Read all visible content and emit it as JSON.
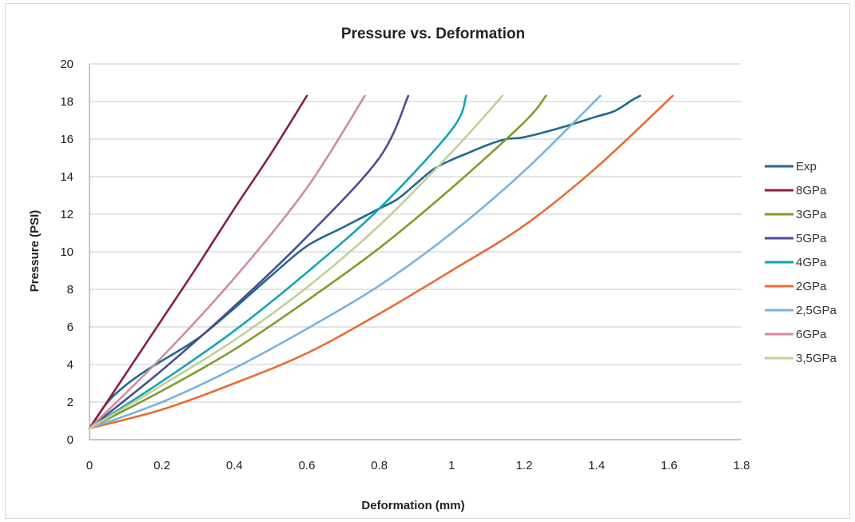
{
  "chart_data": {
    "type": "line",
    "title": "Pressure vs. Deformation",
    "xlabel": "Deformation (mm)",
    "ylabel": "Pressure (PSI)",
    "xlim": [
      0,
      1.8
    ],
    "ylim": [
      0,
      20
    ],
    "xticks": [
      "0",
      "0.2",
      "0.4",
      "0.6",
      "0.8",
      "1",
      "1.2",
      "1.4",
      "1.6",
      "1.8"
    ],
    "yticks": [
      "0",
      "2",
      "4",
      "6",
      "8",
      "10",
      "12",
      "14",
      "16",
      "18",
      "20"
    ],
    "grid": "horizontal",
    "legend_position": "right",
    "series": [
      {
        "name": "Exp",
        "color": "#1f6a8e",
        "x": [
          0.0,
          0.05,
          0.1,
          0.15,
          0.2,
          0.3,
          0.4,
          0.5,
          0.6,
          0.7,
          0.8,
          0.85,
          0.9,
          0.95,
          1.0,
          1.05,
          1.1,
          1.15,
          1.2,
          1.3,
          1.4,
          1.45,
          1.5,
          1.52
        ],
        "y": [
          0.6,
          2.0,
          2.9,
          3.6,
          4.2,
          5.4,
          7.0,
          8.7,
          10.3,
          11.3,
          12.3,
          12.8,
          13.6,
          14.4,
          14.9,
          15.3,
          15.7,
          16.0,
          16.1,
          16.6,
          17.2,
          17.5,
          18.1,
          18.3
        ]
      },
      {
        "name": "8GPa",
        "color": "#8b1f3a",
        "x": [
          0.0,
          0.1,
          0.2,
          0.3,
          0.4,
          0.5,
          0.6
        ],
        "y": [
          0.6,
          3.5,
          6.4,
          9.3,
          12.3,
          15.2,
          18.3
        ]
      },
      {
        "name": "3GPa",
        "color": "#7f9c2a",
        "x": [
          0.0,
          0.2,
          0.4,
          0.6,
          0.8,
          1.0,
          1.2,
          1.26
        ],
        "y": [
          0.6,
          2.6,
          4.8,
          7.4,
          10.2,
          13.4,
          16.9,
          18.3
        ]
      },
      {
        "name": "5GPa",
        "color": "#4b4e8f",
        "x": [
          0.0,
          0.2,
          0.4,
          0.6,
          0.8,
          0.88
        ],
        "y": [
          0.6,
          3.7,
          7.1,
          10.8,
          15.0,
          18.3
        ]
      },
      {
        "name": "4GPa",
        "color": "#13a4b8",
        "x": [
          0.0,
          0.2,
          0.4,
          0.6,
          0.8,
          1.0,
          1.04
        ],
        "y": [
          0.6,
          3.1,
          5.8,
          8.9,
          12.3,
          16.5,
          18.3
        ]
      },
      {
        "name": "2GPa",
        "color": "#ea6b33",
        "x": [
          0.0,
          0.2,
          0.4,
          0.6,
          0.8,
          1.0,
          1.2,
          1.4,
          1.61
        ],
        "y": [
          0.6,
          1.6,
          3.0,
          4.6,
          6.7,
          9.0,
          11.4,
          14.5,
          18.3
        ]
      },
      {
        "name": "2,5GPa",
        "color": "#7ab3dc",
        "x": [
          0.0,
          0.2,
          0.4,
          0.6,
          0.8,
          1.0,
          1.2,
          1.41
        ],
        "y": [
          0.6,
          2.0,
          3.8,
          5.9,
          8.2,
          11.0,
          14.3,
          18.3
        ]
      },
      {
        "name": "6GPa",
        "color": "#cf8ca0",
        "x": [
          0.0,
          0.2,
          0.4,
          0.6,
          0.76
        ],
        "y": [
          0.6,
          4.4,
          8.6,
          13.4,
          18.3
        ]
      },
      {
        "name": "3,5GPa",
        "color": "#c2cf97",
        "x": [
          0.0,
          0.2,
          0.4,
          0.6,
          0.8,
          1.0,
          1.14
        ],
        "y": [
          0.6,
          2.9,
          5.3,
          8.1,
          11.4,
          15.3,
          18.3
        ]
      }
    ]
  }
}
